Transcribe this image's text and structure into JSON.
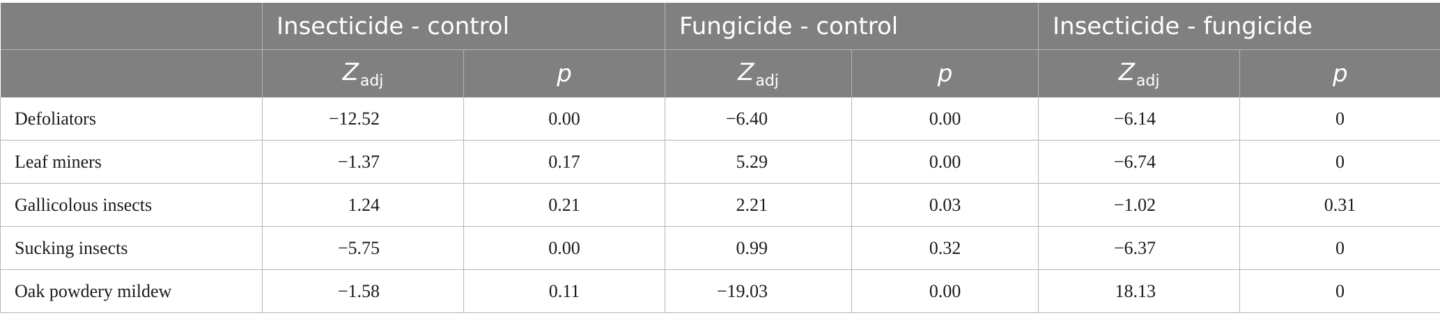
{
  "header": {
    "groups": [
      "Insecticide - control",
      "Fungicide - control",
      "Insecticide - fungicide"
    ],
    "z_label": "Z",
    "z_sub": "adj",
    "p_label": "p"
  },
  "rows": [
    {
      "label": "Defoliators",
      "values": [
        "−12.52",
        "0.00",
        "−6.40",
        "0.00",
        "−6.14",
        "0"
      ]
    },
    {
      "label": "Leaf miners",
      "values": [
        "−1.37",
        "0.17",
        "5.29",
        "0.00",
        "−6.74",
        "0"
      ]
    },
    {
      "label": "Gallicolous insects",
      "values": [
        "1.24",
        "0.21",
        "2.21",
        "0.03",
        "−1.02",
        "0.31"
      ]
    },
    {
      "label": "Sucking insects",
      "values": [
        "−5.75",
        "0.00",
        "0.99",
        "0.32",
        "−6.37",
        "0"
      ]
    },
    {
      "label": "Oak powdery mildew",
      "values": [
        "−1.58",
        "0.11",
        "−19.03",
        "0.00",
        "18.13",
        "0"
      ]
    }
  ]
}
